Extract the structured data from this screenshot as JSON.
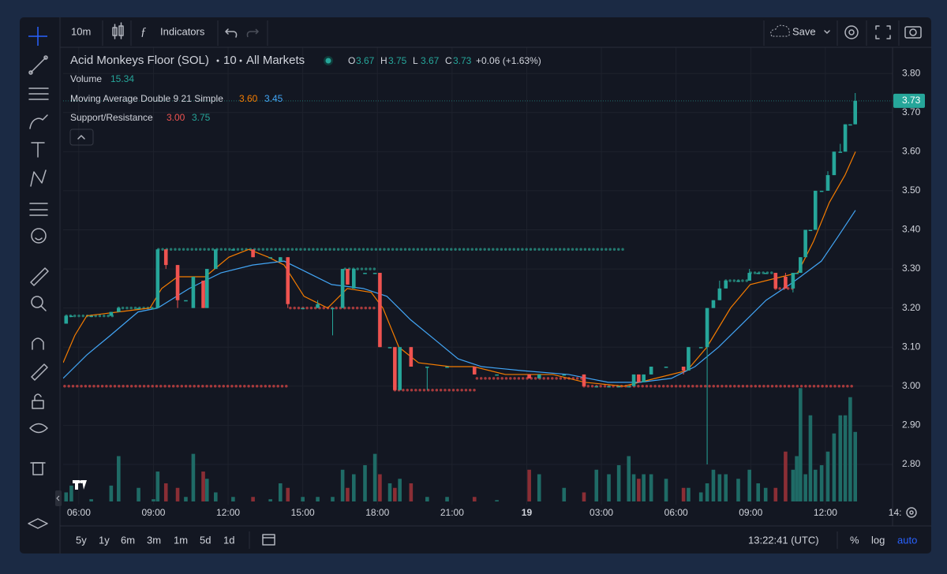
{
  "toolbar": {
    "interval": "10m",
    "indicators": "Indicators",
    "save": "Save"
  },
  "legend": {
    "symbol": "Acid Monkeys Floor (SOL)",
    "resolution": "10",
    "exchange": "All Markets",
    "ohlc": [
      {
        "key": "O",
        "value": "3.67"
      },
      {
        "key": "H",
        "value": "3.75"
      },
      {
        "key": "L",
        "value": "3.67"
      },
      {
        "key": "C",
        "value": "3.73"
      }
    ],
    "change": "+0.06 (+1.63%)",
    "volume": {
      "name": "Volume",
      "value": "15.34"
    },
    "ma": {
      "name": "Moving Average Double 9 21 Simple",
      "values": [
        "3.60",
        "3.45"
      ]
    },
    "sr": {
      "name": "Support/Resistance",
      "values": [
        "3.00",
        "3.75"
      ]
    }
  },
  "bottom": {
    "ranges": [
      "5y",
      "1y",
      "6m",
      "3m",
      "1m",
      "5d",
      "1d"
    ],
    "clock": "13:22:41 (UTC)",
    "percent": "%",
    "log": "log",
    "auto": "auto"
  },
  "chart_data": {
    "type": "candlestick",
    "up_color": "#26a69a",
    "down_color": "#ef5350",
    "volume_up_color": "#1f6b66",
    "volume_down_color": "#8a2e35",
    "xlim": [
      -0.63,
      32.7
    ],
    "ylim": [
      2.697,
      3.867
    ],
    "vlim": [
      0,
      40
    ],
    "grid": true,
    "xticks": [
      {
        "value": 0,
        "label": "06:00"
      },
      {
        "value": 3,
        "label": "09:00"
      },
      {
        "value": 6,
        "label": "12:00"
      },
      {
        "value": 9,
        "label": "15:00"
      },
      {
        "value": 12,
        "label": "18:00"
      },
      {
        "value": 15,
        "label": "21:00"
      },
      {
        "value": 18,
        "label": "19"
      },
      {
        "value": 21,
        "label": "03:00"
      },
      {
        "value": 24,
        "label": "06:00"
      },
      {
        "value": 27,
        "label": "09:00"
      },
      {
        "value": 30,
        "label": "12:00"
      },
      {
        "value": 32.8,
        "label": "14:"
      }
    ],
    "yticks": [
      {
        "value": 3.8,
        "label": "3.80"
      },
      {
        "value": 3.7,
        "label": "3.70"
      },
      {
        "value": 3.6,
        "label": "3.60"
      },
      {
        "value": 3.5,
        "label": "3.50"
      },
      {
        "value": 3.4,
        "label": "3.40"
      },
      {
        "value": 3.3,
        "label": "3.30"
      },
      {
        "value": 3.2,
        "label": "3.20"
      },
      {
        "value": 3.1,
        "label": "3.10"
      },
      {
        "value": 3.0,
        "label": "3.00"
      },
      {
        "value": 2.9,
        "label": "2.90"
      },
      {
        "value": 2.8,
        "label": "2.80"
      }
    ],
    "last_price": {
      "value": 3.73,
      "label": "3.73"
    },
    "candles": [
      {
        "t": -0.51,
        "o": 3.16,
        "h": 3.18,
        "l": 3.16,
        "c": 3.18,
        "v": 2
      },
      {
        "t": -0.3,
        "o": 3.18,
        "h": 3.18,
        "l": 3.18,
        "c": 3.18,
        "v": 3.5
      },
      {
        "t": 0.5,
        "o": 3.18,
        "h": 3.18,
        "l": 3.18,
        "c": 3.18,
        "v": 0.5
      },
      {
        "t": 1.3,
        "o": 3.18,
        "h": 3.19,
        "l": 3.18,
        "c": 3.19,
        "v": 3.5
      },
      {
        "t": 1.6,
        "o": 3.19,
        "h": 3.2,
        "l": 3.19,
        "c": 3.2,
        "v": 10
      },
      {
        "t": 2.4,
        "o": 3.2,
        "h": 3.2,
        "l": 3.2,
        "c": 3.2,
        "v": 3
      },
      {
        "t": 3.0,
        "o": 3.2,
        "h": 3.2,
        "l": 3.2,
        "c": 3.2,
        "v": 0.5
      },
      {
        "t": 3.17,
        "o": 3.2,
        "h": 3.35,
        "l": 3.2,
        "c": 3.35,
        "v": 6.6
      },
      {
        "t": 3.5,
        "o": 3.35,
        "h": 3.35,
        "l": 3.3,
        "c": 3.31,
        "v": 4
      },
      {
        "t": 3.97,
        "o": 3.31,
        "h": 3.31,
        "l": 3.2,
        "c": 3.22,
        "v": 3
      },
      {
        "t": 4.3,
        "o": 3.22,
        "h": 3.22,
        "l": 3.22,
        "c": 3.22,
        "v": 1
      },
      {
        "t": 4.6,
        "o": 3.2,
        "h": 3.28,
        "l": 3.2,
        "c": 3.28,
        "v": 10.5
      },
      {
        "t": 5.0,
        "o": 3.27,
        "h": 3.27,
        "l": 3.2,
        "c": 3.2,
        "v": 6.6
      },
      {
        "t": 5.15,
        "o": 3.2,
        "h": 3.3,
        "l": 3.2,
        "c": 3.3,
        "v": 5
      },
      {
        "t": 5.5,
        "o": 3.3,
        "h": 3.35,
        "l": 3.3,
        "c": 3.35,
        "v": 2
      },
      {
        "t": 6.2,
        "o": 3.35,
        "h": 3.35,
        "l": 3.35,
        "c": 3.35,
        "v": 1
      },
      {
        "t": 7.0,
        "o": 3.35,
        "h": 3.35,
        "l": 3.33,
        "c": 3.33,
        "v": 1
      },
      {
        "t": 7.7,
        "o": 3.33,
        "h": 3.33,
        "l": 3.33,
        "c": 3.33,
        "v": 0.5
      },
      {
        "t": 8.1,
        "o": 3.32,
        "h": 3.33,
        "l": 3.32,
        "c": 3.33,
        "v": 4
      },
      {
        "t": 8.4,
        "o": 3.33,
        "h": 3.33,
        "l": 3.2,
        "c": 3.21,
        "v": 3
      },
      {
        "t": 9.0,
        "o": 3.2,
        "h": 3.2,
        "l": 3.2,
        "c": 3.2,
        "v": 1
      },
      {
        "t": 9.6,
        "o": 3.2,
        "h": 3.22,
        "l": 3.2,
        "c": 3.21,
        "v": 1
      },
      {
        "t": 10.2,
        "o": 3.2,
        "h": 3.2,
        "l": 3.13,
        "c": 3.2,
        "v": 1
      },
      {
        "t": 10.6,
        "o": 3.2,
        "h": 3.3,
        "l": 3.2,
        "c": 3.3,
        "v": 7
      },
      {
        "t": 10.8,
        "o": 3.3,
        "h": 3.3,
        "l": 3.26,
        "c": 3.26,
        "v": 3
      },
      {
        "t": 11.05,
        "o": 3.25,
        "h": 3.3,
        "l": 3.25,
        "c": 3.3,
        "v": 6
      },
      {
        "t": 11.5,
        "o": 3.29,
        "h": 3.29,
        "l": 3.29,
        "c": 3.29,
        "v": 8
      },
      {
        "t": 11.9,
        "o": 3.29,
        "h": 3.29,
        "l": 3.29,
        "c": 3.29,
        "v": 10.5
      },
      {
        "t": 12.1,
        "o": 3.29,
        "h": 3.29,
        "l": 3.1,
        "c": 3.1,
        "v": 6
      },
      {
        "t": 12.5,
        "o": 3.1,
        "h": 3.1,
        "l": 3.1,
        "c": 3.1,
        "v": 4
      },
      {
        "t": 12.7,
        "o": 3.1,
        "h": 3.1,
        "l": 2.99,
        "c": 2.99,
        "v": 3
      },
      {
        "t": 12.9,
        "o": 2.99,
        "h": 3.1,
        "l": 2.99,
        "c": 3.1,
        "v": 5
      },
      {
        "t": 13.35,
        "o": 3.1,
        "h": 3.1,
        "l": 3.05,
        "c": 3.05,
        "v": 4
      },
      {
        "t": 14.0,
        "o": 3.05,
        "h": 3.05,
        "l": 2.99,
        "c": 3.05,
        "v": 1
      },
      {
        "t": 14.8,
        "o": 3.05,
        "h": 3.05,
        "l": 3.05,
        "c": 3.05,
        "v": 1
      },
      {
        "t": 15.9,
        "o": 3.05,
        "h": 3.05,
        "l": 3.03,
        "c": 3.03,
        "v": 1
      },
      {
        "t": 16.8,
        "o": 3.03,
        "h": 3.03,
        "l": 3.03,
        "c": 3.03,
        "v": 0.3
      },
      {
        "t": 18.1,
        "o": 3.03,
        "h": 3.03,
        "l": 3.02,
        "c": 3.02,
        "v": 7
      },
      {
        "t": 18.5,
        "o": 3.02,
        "h": 3.03,
        "l": 3.02,
        "c": 3.03,
        "v": 6
      },
      {
        "t": 19.5,
        "o": 3.03,
        "h": 3.03,
        "l": 3.03,
        "c": 3.03,
        "v": 3
      },
      {
        "t": 20.3,
        "o": 3.03,
        "h": 3.03,
        "l": 3.0,
        "c": 3.0,
        "v": 2
      },
      {
        "t": 20.8,
        "o": 3.0,
        "h": 3.0,
        "l": 3.0,
        "c": 3.0,
        "v": 7
      },
      {
        "t": 21.3,
        "o": 3.0,
        "h": 3.0,
        "l": 3.0,
        "c": 3.0,
        "v": 6
      },
      {
        "t": 21.7,
        "o": 3.0,
        "h": 3.0,
        "l": 3.0,
        "c": 3.0,
        "v": 8
      },
      {
        "t": 22.1,
        "o": 3.0,
        "h": 3.0,
        "l": 3.0,
        "c": 3.0,
        "v": 10
      },
      {
        "t": 22.3,
        "o": 3.0,
        "h": 3.03,
        "l": 3.0,
        "c": 3.03,
        "v": 6
      },
      {
        "t": 22.5,
        "o": 3.03,
        "h": 3.03,
        "l": 3.01,
        "c": 3.01,
        "v": 5
      },
      {
        "t": 22.7,
        "o": 3.01,
        "h": 3.03,
        "l": 3.01,
        "c": 3.03,
        "v": 6
      },
      {
        "t": 23.0,
        "o": 3.03,
        "h": 3.05,
        "l": 3.03,
        "c": 3.05,
        "v": 6
      },
      {
        "t": 23.6,
        "o": 3.05,
        "h": 3.05,
        "l": 3.05,
        "c": 3.05,
        "v": 5
      },
      {
        "t": 24.3,
        "o": 3.05,
        "h": 3.05,
        "l": 3.03,
        "c": 3.04,
        "v": 3
      },
      {
        "t": 24.5,
        "o": 3.04,
        "h": 3.1,
        "l": 3.04,
        "c": 3.1,
        "v": 3
      },
      {
        "t": 25.0,
        "o": 3.1,
        "h": 3.1,
        "l": 3.1,
        "c": 3.1,
        "v": 2
      },
      {
        "t": 25.25,
        "o": 3.1,
        "h": 3.2,
        "l": 2.8,
        "c": 3.2,
        "v": 4
      },
      {
        "t": 25.5,
        "o": 3.2,
        "h": 3.22,
        "l": 3.2,
        "c": 3.22,
        "v": 7
      },
      {
        "t": 25.75,
        "o": 3.22,
        "h": 3.27,
        "l": 3.22,
        "c": 3.25,
        "v": 6
      },
      {
        "t": 26.0,
        "o": 3.25,
        "h": 3.27,
        "l": 3.25,
        "c": 3.27,
        "v": 6
      },
      {
        "t": 26.5,
        "o": 3.27,
        "h": 3.27,
        "l": 3.27,
        "c": 3.27,
        "v": 5
      },
      {
        "t": 26.95,
        "o": 3.27,
        "h": 3.3,
        "l": 3.27,
        "c": 3.29,
        "v": 7
      },
      {
        "t": 27.3,
        "o": 3.29,
        "h": 3.29,
        "l": 3.29,
        "c": 3.29,
        "v": 4
      },
      {
        "t": 27.6,
        "o": 3.29,
        "h": 3.29,
        "l": 3.29,
        "c": 3.29,
        "v": 3
      },
      {
        "t": 28.0,
        "o": 3.29,
        "h": 3.29,
        "l": 3.25,
        "c": 3.25,
        "v": 3
      },
      {
        "t": 28.4,
        "o": 3.28,
        "h": 3.29,
        "l": 3.25,
        "c": 3.25,
        "v": 11
      },
      {
        "t": 28.7,
        "o": 3.25,
        "h": 3.29,
        "l": 3.24,
        "c": 3.29,
        "v": 7
      },
      {
        "t": 28.85,
        "o": 3.29,
        "h": 3.29,
        "l": 3.29,
        "c": 3.29,
        "v": 10
      },
      {
        "t": 29.0,
        "o": 3.29,
        "h": 3.33,
        "l": 3.29,
        "c": 3.33,
        "v": 25
      },
      {
        "t": 29.2,
        "o": 3.33,
        "h": 3.4,
        "l": 3.33,
        "c": 3.4,
        "v": 6
      },
      {
        "t": 29.4,
        "o": 3.4,
        "h": 3.4,
        "l": 3.4,
        "c": 3.4,
        "v": 19
      },
      {
        "t": 29.6,
        "o": 3.4,
        "h": 3.5,
        "l": 3.4,
        "c": 3.5,
        "v": 7
      },
      {
        "t": 29.85,
        "o": 3.5,
        "h": 3.5,
        "l": 3.5,
        "c": 3.5,
        "v": 8
      },
      {
        "t": 30.1,
        "o": 3.5,
        "h": 3.55,
        "l": 3.5,
        "c": 3.54,
        "v": 11
      },
      {
        "t": 30.35,
        "o": 3.54,
        "h": 3.6,
        "l": 3.54,
        "c": 3.6,
        "v": 15
      },
      {
        "t": 30.6,
        "o": 3.6,
        "h": 3.62,
        "l": 3.6,
        "c": 3.6,
        "v": 19
      },
      {
        "t": 30.8,
        "o": 3.6,
        "h": 3.67,
        "l": 3.6,
        "c": 3.67,
        "v": 19
      },
      {
        "t": 31.0,
        "o": 3.67,
        "h": 3.67,
        "l": 3.67,
        "c": 3.67,
        "v": 23
      },
      {
        "t": 31.2,
        "o": 3.67,
        "h": 3.75,
        "l": 3.67,
        "c": 3.73,
        "v": 15.34
      }
    ],
    "series": [
      {
        "name": "MA 9",
        "color": "#f57c00",
        "x": [
          -0.63,
          -0.16,
          0.32,
          1.59,
          2.86,
          3.33,
          3.97,
          5.08,
          6.03,
          6.83,
          7.62,
          8.25,
          9.05,
          10.0,
          10.79,
          11.75,
          12.22,
          12.86,
          13.65,
          14.92,
          15.87,
          17.14,
          19.05,
          20.32,
          21.9,
          23.17,
          24.44,
          25.24,
          26.19,
          26.98,
          28.25,
          28.89,
          29.52,
          30.16,
          30.79,
          31.21
        ],
        "values": [
          3.06,
          3.13,
          3.18,
          3.19,
          3.2,
          3.25,
          3.28,
          3.28,
          3.33,
          3.35,
          3.33,
          3.31,
          3.23,
          3.2,
          3.25,
          3.24,
          3.2,
          3.1,
          3.06,
          3.05,
          3.05,
          3.03,
          3.03,
          3.01,
          3.0,
          3.02,
          3.04,
          3.1,
          3.2,
          3.26,
          3.28,
          3.29,
          3.37,
          3.47,
          3.54,
          3.6
        ]
      },
      {
        "name": "MA 21",
        "color": "#42a5f5",
        "x": [
          -0.63,
          0.32,
          1.27,
          2.38,
          3.17,
          4.44,
          5.71,
          6.98,
          8.25,
          9.21,
          10.16,
          11.43,
          12.38,
          13.33,
          14.29,
          15.24,
          16.19,
          17.78,
          19.68,
          21.27,
          22.54,
          23.81,
          24.76,
          25.71,
          26.67,
          27.62,
          28.57,
          29.21,
          29.84,
          30.48,
          31.21
        ],
        "values": [
          3.02,
          3.08,
          3.13,
          3.19,
          3.2,
          3.25,
          3.29,
          3.31,
          3.32,
          3.29,
          3.26,
          3.25,
          3.23,
          3.17,
          3.12,
          3.07,
          3.05,
          3.04,
          3.03,
          3.01,
          3.01,
          3.02,
          3.05,
          3.1,
          3.16,
          3.22,
          3.26,
          3.29,
          3.32,
          3.38,
          3.45
        ]
      }
    ],
    "levels": [
      {
        "price": 3.18,
        "from": -0.5,
        "to": 1.5,
        "color": "#23786f"
      },
      {
        "price": 3.2,
        "from": 1.6,
        "to": 3.0,
        "color": "#23786f"
      },
      {
        "price": 3.35,
        "from": 3.2,
        "to": 22.0,
        "color": "#23786f"
      },
      {
        "price": 3.3,
        "from": 10.7,
        "to": 11.9,
        "color": "#23786f"
      },
      {
        "price": 3.0,
        "from": -0.57,
        "to": 8.5,
        "color": "#a83a3c"
      },
      {
        "price": 3.2,
        "from": 8.5,
        "to": 12.0,
        "color": "#a83a3c"
      },
      {
        "price": 2.99,
        "from": 12.7,
        "to": 16.0,
        "color": "#a83a3c"
      },
      {
        "price": 3.02,
        "from": 16.0,
        "to": 20.3,
        "color": "#a83a3c"
      },
      {
        "price": 3.0,
        "from": 20.3,
        "to": 31.2,
        "color": "#a83a3c"
      },
      {
        "price": 3.27,
        "from": 26.0,
        "to": 27.0,
        "color": "#23786f"
      },
      {
        "price": 3.29,
        "from": 27.0,
        "to": 28.0,
        "color": "#23786f"
      },
      {
        "price": 3.25,
        "from": 28.0,
        "to": 28.7,
        "color": "#a83a3c"
      }
    ]
  }
}
